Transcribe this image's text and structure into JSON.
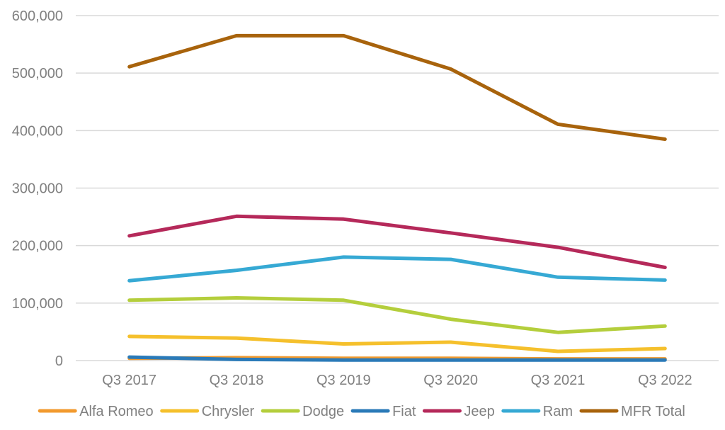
{
  "chart_data": {
    "type": "line",
    "title": "",
    "xlabel": "",
    "ylabel": "",
    "categories": [
      "Q3 2017",
      "Q3 2018",
      "Q3 2019",
      "Q3 2020",
      "Q3 2021",
      "Q3 2022"
    ],
    "ylim": [
      0,
      600000
    ],
    "yticks": [
      0,
      100000,
      200000,
      300000,
      400000,
      500000,
      600000
    ],
    "ytick_labels": [
      "0",
      "100,000",
      "200,000",
      "300,000",
      "400,000",
      "500,000",
      "600,000"
    ],
    "grid": true,
    "legend_position": "bottom",
    "series": [
      {
        "name": "Alfa Romeo",
        "color": "#F29A2E",
        "values": [
          4000,
          5000,
          4000,
          4000,
          3000,
          3000
        ]
      },
      {
        "name": "Chrysler",
        "color": "#F5C02C",
        "values": [
          42000,
          39000,
          29000,
          32000,
          16000,
          21000
        ]
      },
      {
        "name": "Dodge",
        "color": "#B4CE3C",
        "values": [
          105000,
          109000,
          105000,
          72000,
          49000,
          60000
        ]
      },
      {
        "name": "Fiat",
        "color": "#2A7AB8",
        "values": [
          6000,
          2000,
          1000,
          1000,
          1000,
          1000
        ]
      },
      {
        "name": "Jeep",
        "color": "#B5295A",
        "values": [
          217000,
          251000,
          246000,
          222000,
          197000,
          162000
        ]
      },
      {
        "name": "Ram",
        "color": "#36A9D4",
        "values": [
          139000,
          157000,
          180000,
          176000,
          145000,
          140000
        ]
      },
      {
        "name": "MFR Total",
        "color": "#A8630C",
        "values": [
          511000,
          565000,
          565000,
          507000,
          411000,
          385000
        ]
      }
    ]
  }
}
